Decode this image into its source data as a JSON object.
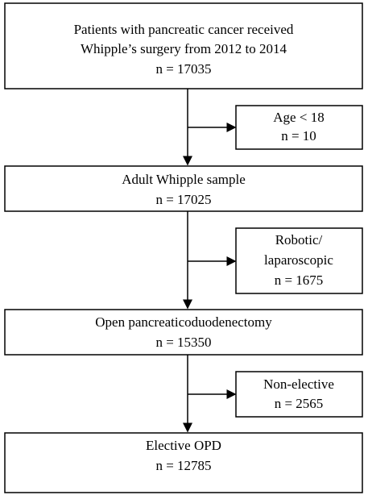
{
  "nodes": [
    {
      "lines": [
        "Patients with pancreatic cancer received",
        "Whipple’s surgery from 2012 to 2014",
        "n = 17035"
      ]
    },
    {
      "lines": [
        "Age < 18",
        "n = 10"
      ]
    },
    {
      "lines": [
        "Adult Whipple sample",
        "n = 17025"
      ]
    },
    {
      "lines": [
        "Robotic/",
        "laparoscopic",
        "n = 1675"
      ]
    },
    {
      "lines": [
        "Open pancreaticoduodenectomy",
        "n = 15350"
      ]
    },
    {
      "lines": [
        "Non-elective",
        "n = 2565"
      ]
    },
    {
      "lines": [
        "Elective OPD",
        "n = 12785"
      ]
    }
  ]
}
